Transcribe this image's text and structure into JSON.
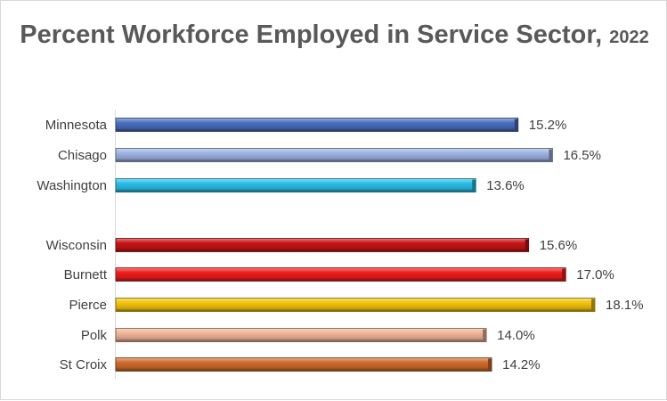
{
  "chart_data": {
    "type": "bar",
    "orientation": "horizontal",
    "title": "Percent Workforce Employed in Service Sector,",
    "title_year": "2022",
    "categories": [
      "Minnesota",
      "Chisago",
      "Washington",
      "Wisconsin",
      "Burnett",
      "Pierce",
      "Polk",
      "St Croix"
    ],
    "values": [
      15.2,
      16.5,
      13.6,
      15.6,
      17.0,
      18.1,
      14.0,
      14.2
    ],
    "value_labels": [
      "15.2%",
      "16.5%",
      "13.6%",
      "15.6%",
      "17.0%",
      "18.1%",
      "14.0%",
      "14.2%"
    ],
    "colors": [
      "#4a6fc0",
      "#9db3e3",
      "#29bfe8",
      "#c81414",
      "#f01c1c",
      "#f2c40c",
      "#f0b596",
      "#cf6b2b"
    ],
    "xlim": [
      0,
      20
    ],
    "legend": "none",
    "grid": false
  }
}
